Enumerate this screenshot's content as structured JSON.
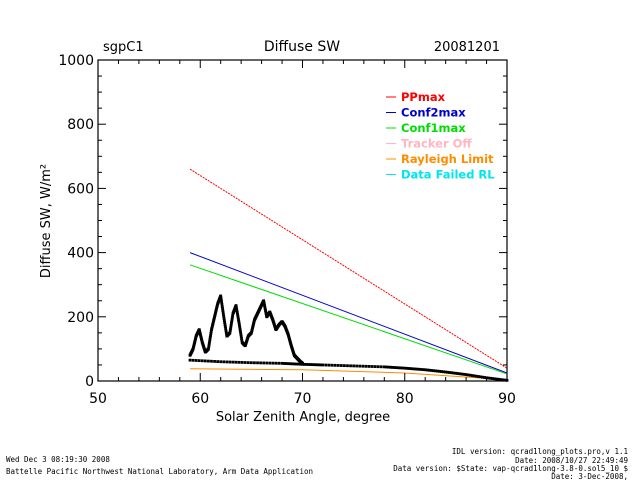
{
  "header": {
    "site": "sgpC1",
    "title": "Diffuse SW",
    "date": "20081201"
  },
  "footer": {
    "left_line1": "Wed Dec  3 08:19:30 2008",
    "left_line2": "Battelle Pacific Northwest National Laboratory, Arm Data Application",
    "right_line1": "IDL version: qcrad1long_plots.pro,v 1.1",
    "right_line2": "Date: 2008/10/27 22:49:49",
    "right_line3": "Data version: $State: vap-qcrad1long-3.8-0.sol5_10 $",
    "right_line4": "Date: 3-Dec-2008,"
  },
  "colors": {
    "PPmax": "#ff0000",
    "Conf2max": "#0000cc",
    "Conf1max": "#00dd00",
    "Tracker Off": "#ffb6c1",
    "Rayleigh Limit": "#ff8c00",
    "Data Failed RL": "#00e5ee",
    "measured": "#000000"
  },
  "chart_data": {
    "type": "line",
    "title": "Diffuse SW",
    "xlabel": "Solar Zenith Angle, degree",
    "ylabel": "Diffuse SW,  W/m²",
    "xlim": [
      50,
      90
    ],
    "ylim": [
      0,
      1000
    ],
    "xticks": [
      50,
      60,
      70,
      80,
      90
    ],
    "yticks": [
      0,
      200,
      400,
      600,
      800,
      1000
    ],
    "legend_position": "top-right",
    "legend": [
      "PPmax",
      "Conf2max",
      "Conf1max",
      "Tracker Off",
      "Rayleigh Limit",
      "Data Failed RL"
    ],
    "series": [
      {
        "name": "PPmax",
        "x": [
          59,
          90
        ],
        "y": [
          660,
          40
        ]
      },
      {
        "name": "Conf2max",
        "x": [
          59,
          90
        ],
        "y": [
          400,
          25
        ]
      },
      {
        "name": "Conf1max",
        "x": [
          59,
          90
        ],
        "y": [
          362,
          22
        ]
      },
      {
        "name": "Rayleigh Limit",
        "x": [
          59,
          70,
          80,
          90
        ],
        "y": [
          38,
          35,
          25,
          4
        ]
      },
      {
        "name": "measured",
        "style": "points",
        "x": [
          59,
          59.3,
          59.6,
          59.9,
          60.2,
          60.5,
          60.8,
          61.1,
          61.4,
          61.7,
          62.0,
          62.3,
          62.6,
          62.9,
          63.2,
          63.5,
          63.8,
          64.1,
          64.4,
          64.7,
          65.0,
          65.3,
          65.6,
          65.9,
          66.2,
          66.5,
          66.8,
          67.1,
          67.4,
          67.7,
          68.0,
          68.3,
          68.6,
          68.9,
          69.2,
          69.5,
          69.8,
          70.0
        ],
        "y": [
          80,
          100,
          140,
          160,
          120,
          90,
          100,
          160,
          200,
          240,
          265,
          200,
          140,
          150,
          210,
          235,
          180,
          120,
          110,
          140,
          150,
          190,
          210,
          230,
          250,
          200,
          215,
          190,
          160,
          175,
          185,
          170,
          145,
          110,
          80,
          70,
          60,
          55
        ]
      },
      {
        "name": "baseline",
        "style": "points",
        "x": [
          59,
          62,
          65,
          68,
          70,
          72,
          75,
          78,
          80,
          82,
          84,
          86,
          88,
          90
        ],
        "y": [
          65,
          60,
          57,
          55,
          52,
          50,
          47,
          44,
          40,
          35,
          28,
          20,
          10,
          2
        ]
      }
    ]
  }
}
